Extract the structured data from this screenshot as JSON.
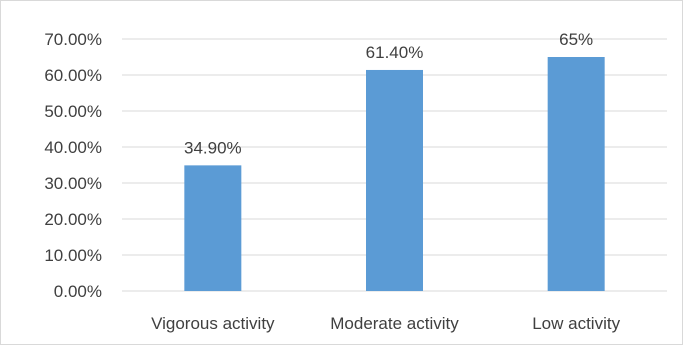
{
  "chart_data": {
    "type": "bar",
    "title": "",
    "xlabel": "",
    "ylabel": "",
    "categories": [
      "Vigorous activity",
      "Moderate activity",
      "Low activity"
    ],
    "values": [
      0.349,
      0.614,
      0.65
    ],
    "data_labels": [
      "34.90%",
      "61.40%",
      "65%"
    ],
    "ylim": [
      0,
      0.7
    ],
    "yticks": [
      0,
      0.1,
      0.2,
      0.3,
      0.4,
      0.5,
      0.6,
      0.7
    ],
    "ytick_labels": [
      "0.00%",
      "10.00%",
      "20.00%",
      "30.00%",
      "40.00%",
      "50.00%",
      "60.00%",
      "70.00%"
    ],
    "grid": true,
    "legend": "none",
    "bar_color": "#5b9bd5",
    "grid_color": "#d9d9d9"
  }
}
